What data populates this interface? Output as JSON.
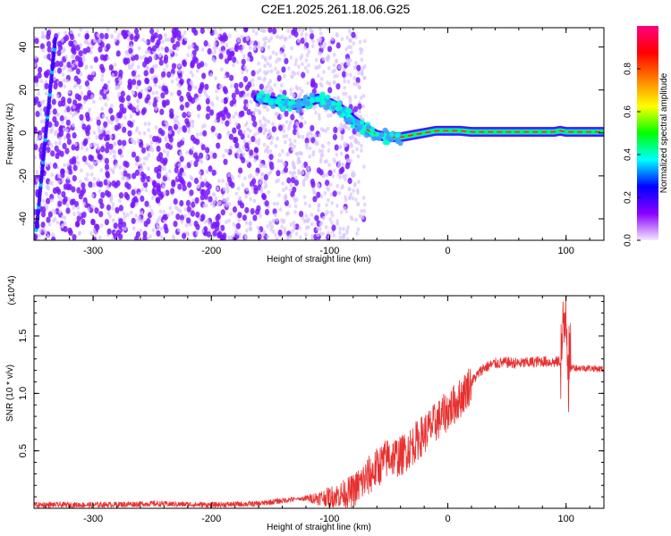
{
  "figure": {
    "title": "C2E1.2025.261.18.06.G25"
  },
  "colors": {
    "snr_line": "#e83030",
    "frame": "#000000",
    "scatter_main": "#7a18ff",
    "scatter_light": "#d8c4ff",
    "colorbar_stops": [
      "#f5e8ff",
      "#8a00ff",
      "#0000ff",
      "#00ffff",
      "#00ff00",
      "#ffff00",
      "#ff8000",
      "#ff0000",
      "#ff0080"
    ]
  },
  "chart_data": [
    {
      "type": "heatmap",
      "name": "spectrogram",
      "xlabel": "Height of straight line (km)",
      "ylabel": "Frequency (Hz)",
      "xlim": [
        -350,
        132
      ],
      "ylim": [
        -50,
        49
      ],
      "x_ticks": [
        -300,
        -200,
        -100,
        0,
        100
      ],
      "y_ticks": [
        -40,
        -20,
        0,
        20,
        40
      ],
      "colorbar": {
        "label": "Normalized spectral amplitude",
        "range": [
          0,
          1
        ],
        "ticks": [
          0.0,
          0.2,
          0.4,
          0.6,
          0.8
        ]
      },
      "ridge": {
        "x": [
          -160,
          -150,
          -140,
          -130,
          -120,
          -110,
          -100,
          -90,
          -80,
          -70,
          -60,
          -50,
          -40,
          -30,
          -20,
          -10,
          0,
          10,
          20,
          40,
          60,
          80,
          90,
          95,
          100,
          110,
          132
        ],
        "frequency": [
          16,
          15,
          14,
          13,
          14,
          16,
          14,
          11,
          6,
          2,
          -1,
          -2,
          -2,
          -1,
          0,
          1,
          1,
          1,
          0.5,
          0.5,
          0.5,
          0.5,
          0.5,
          1,
          0.5,
          0.5,
          0.5
        ]
      },
      "noise_region_xlim": [
        -350,
        -90
      ]
    },
    {
      "type": "line",
      "name": "snr",
      "xlabel": "Height of straight line (km)",
      "ylabel": "SNR (10 * v/v)",
      "y_multiplier": "(x10^4)",
      "xlim": [
        -350,
        132
      ],
      "ylim": [
        0,
        18500
      ],
      "x_ticks": [
        -300,
        -200,
        -100,
        0,
        100
      ],
      "y_ticks": [
        5000,
        10000,
        15000
      ],
      "y_tick_labels": [
        "0.5",
        "1.0",
        "1.5"
      ],
      "x": [
        -350,
        -300,
        -250,
        -200,
        -160,
        -130,
        -110,
        -100,
        -90,
        -80,
        -70,
        -60,
        -50,
        -40,
        -30,
        -20,
        -10,
        0,
        10,
        20,
        30,
        40,
        50,
        60,
        70,
        80,
        90,
        95,
        98,
        100,
        102,
        105,
        110,
        120,
        132
      ],
      "y": [
        300,
        300,
        400,
        300,
        400,
        800,
        900,
        1000,
        1200,
        1500,
        2500,
        3500,
        4500,
        4500,
        5500,
        6500,
        7500,
        8500,
        9500,
        11000,
        12200,
        12600,
        12700,
        12600,
        12700,
        12800,
        12700,
        12800,
        15000,
        18500,
        12000,
        12300,
        12200,
        12200,
        12100
      ]
    }
  ]
}
